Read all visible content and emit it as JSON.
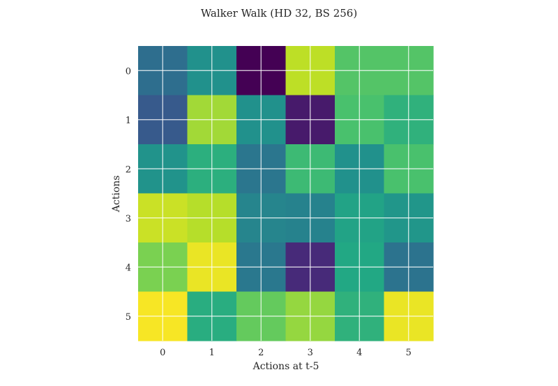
{
  "chart_data": {
    "type": "heatmap",
    "title": "Walker Walk (HD 32, BS 256)",
    "xlabel": "Actions at t-5",
    "ylabel": "Actions",
    "x_categories": [
      "0",
      "1",
      "2",
      "3",
      "4",
      "5"
    ],
    "y_categories": [
      "0",
      "1",
      "2",
      "3",
      "4",
      "5"
    ],
    "colormap": "viridis",
    "vrange": [
      0,
      1
    ],
    "grid": true,
    "grid_color": "#ffffff",
    "colorbar": false,
    "values": [
      [
        0.36,
        0.5,
        0.0,
        0.9,
        0.73,
        0.73
      ],
      [
        0.28,
        0.86,
        0.5,
        0.07,
        0.71,
        0.64
      ],
      [
        0.51,
        0.63,
        0.39,
        0.68,
        0.5,
        0.71
      ],
      [
        0.92,
        0.89,
        0.45,
        0.44,
        0.58,
        0.52
      ],
      [
        0.8,
        0.97,
        0.4,
        0.12,
        0.6,
        0.38
      ],
      [
        0.99,
        0.62,
        0.76,
        0.84,
        0.64,
        0.97
      ]
    ]
  }
}
